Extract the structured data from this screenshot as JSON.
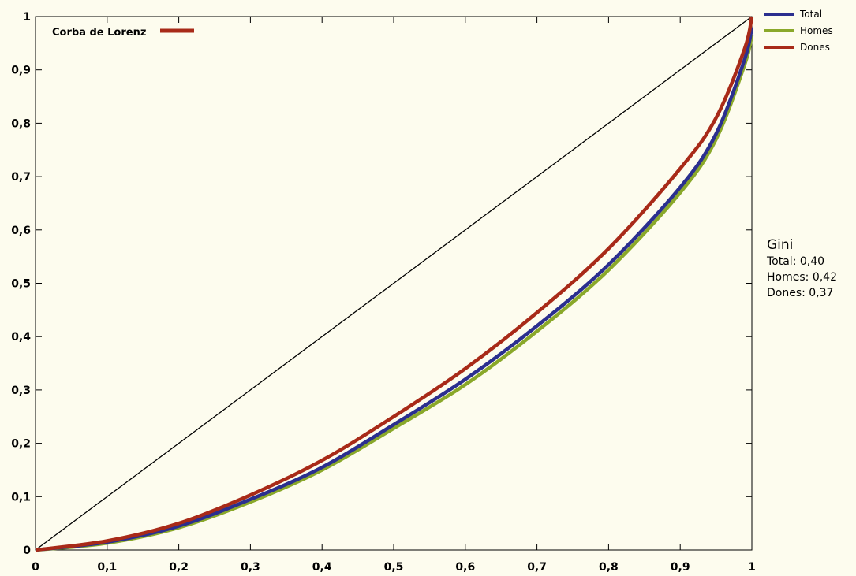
{
  "chart_data": {
    "type": "line",
    "title": "",
    "xlabel": "",
    "ylabel": "",
    "xlim": [
      0,
      1
    ],
    "ylim": [
      0,
      1
    ],
    "x_ticks": [
      "0",
      "0,1",
      "0,2",
      "0,3",
      "0,4",
      "0,5",
      "0,6",
      "0,7",
      "0,8",
      "0,9",
      "1"
    ],
    "y_ticks": [
      "0",
      "0,1",
      "0,2",
      "0,3",
      "0,4",
      "0,5",
      "0,6",
      "0,7",
      "0,8",
      "0,9",
      "1"
    ],
    "inner_legend": {
      "label": "Corba de Lorenz",
      "color": "#a82a18"
    },
    "equality_line": {
      "x": [
        0,
        1
      ],
      "y": [
        0,
        1
      ],
      "color": "#000000"
    },
    "series": [
      {
        "name": "Total",
        "color": "#2b2f8f",
        "x": [
          0,
          0.1,
          0.2,
          0.3,
          0.4,
          0.5,
          0.6,
          0.7,
          0.8,
          0.9,
          0.95,
          0.99,
          1
        ],
        "y": [
          0,
          0.015,
          0.045,
          0.095,
          0.155,
          0.235,
          0.32,
          0.42,
          0.535,
          0.68,
          0.78,
          0.92,
          0.98
        ]
      },
      {
        "name": "Homes",
        "color": "#8aa82a",
        "x": [
          0,
          0.1,
          0.2,
          0.3,
          0.4,
          0.5,
          0.6,
          0.7,
          0.8,
          0.9,
          0.95,
          0.99,
          1
        ],
        "y": [
          0,
          0.013,
          0.042,
          0.09,
          0.15,
          0.228,
          0.31,
          0.41,
          0.525,
          0.67,
          0.77,
          0.91,
          0.965
        ]
      },
      {
        "name": "Dones",
        "color": "#a82a18",
        "x": [
          0,
          0.1,
          0.2,
          0.3,
          0.4,
          0.5,
          0.6,
          0.7,
          0.8,
          0.9,
          0.95,
          0.99,
          1
        ],
        "y": [
          0,
          0.017,
          0.05,
          0.103,
          0.168,
          0.25,
          0.34,
          0.445,
          0.565,
          0.715,
          0.81,
          0.94,
          1
        ]
      }
    ],
    "legend_position": "outside-top-right",
    "grid": false
  },
  "gini": {
    "title": "Gini",
    "rows": [
      {
        "label": "Total:",
        "value": "0,40"
      },
      {
        "label": "Homes:",
        "value": "0,42"
      },
      {
        "label": "Dones:",
        "value": "0,37"
      }
    ]
  }
}
